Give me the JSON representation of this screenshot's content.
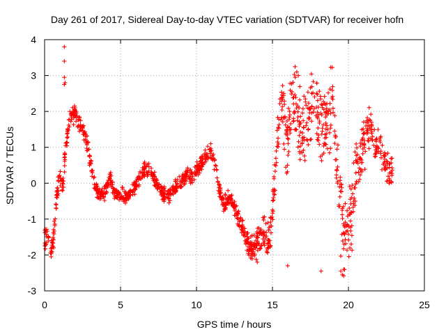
{
  "chart_data": {
    "type": "scatter",
    "title": "Day 261 of 2017, Sidereal Day-to-day VTEC variation (SDTVAR) for receiver hofn",
    "xlabel": "GPS time / hours",
    "ylabel": "SDTVAR / TECUs",
    "xlim": [
      0,
      25
    ],
    "ylim": [
      -3,
      4
    ],
    "xticks": [
      "0",
      "5",
      "10",
      "15",
      "20",
      "25"
    ],
    "yticks": [
      "-3",
      "-2",
      "-1",
      "0",
      "1",
      "2",
      "3",
      "4"
    ],
    "grid": true,
    "marker": "+",
    "color": "#ff0000",
    "series": [
      {
        "name": "SDTVAR",
        "anchors_x": [
          0.0,
          0.2,
          0.4,
          0.6,
          0.8,
          1.0,
          1.2,
          1.4,
          1.6,
          1.8,
          2.0,
          2.2,
          2.4,
          2.6,
          2.8,
          3.0,
          3.3,
          3.6,
          4.0,
          4.3,
          4.6,
          5.0,
          5.4,
          5.8,
          6.2,
          6.6,
          7.0,
          7.4,
          7.8,
          8.2,
          8.6,
          9.0,
          9.4,
          9.8,
          10.2,
          10.6,
          10.9,
          11.2,
          11.5,
          11.8,
          12.2,
          12.6,
          13.0,
          13.3,
          13.6,
          14.0,
          14.4,
          14.8,
          15.0,
          15.3,
          15.6,
          16.0,
          16.3,
          16.6,
          17.0,
          17.4,
          17.8,
          18.2,
          18.6,
          19.0,
          19.3,
          19.6,
          19.9,
          20.2,
          20.5,
          20.8,
          21.1,
          21.4,
          21.7,
          22.0,
          22.3,
          22.6,
          22.9
        ],
        "anchors_y": [
          -1.6,
          -1.4,
          -1.9,
          -1.5,
          -0.3,
          0.2,
          -0.2,
          1.2,
          1.6,
          1.9,
          2.0,
          1.6,
          1.8,
          1.4,
          1.2,
          0.6,
          0.0,
          -0.4,
          -0.2,
          0.2,
          -0.3,
          -0.3,
          -0.4,
          -0.2,
          0.1,
          0.4,
          0.3,
          0.0,
          -0.3,
          -0.4,
          -0.1,
          0.0,
          0.3,
          0.2,
          0.5,
          0.7,
          0.9,
          0.6,
          -0.2,
          -0.6,
          -0.4,
          -0.8,
          -1.2,
          -1.6,
          -1.9,
          -1.6,
          -1.4,
          -1.8,
          -0.8,
          1.2,
          2.2,
          1.0,
          2.6,
          1.8,
          1.2,
          2.0,
          2.2,
          1.6,
          1.8,
          2.4,
          0.6,
          -1.2,
          -1.6,
          -1.0,
          0.2,
          0.8,
          1.2,
          1.8,
          1.0,
          1.2,
          0.6,
          0.4,
          0.2
        ],
        "spread_x": [
          0,
          2,
          4,
          6,
          8,
          10,
          12,
          13,
          14,
          15,
          16,
          17,
          18,
          19,
          20,
          21,
          22,
          23
        ],
        "spread_y": [
          0.25,
          0.2,
          0.15,
          0.15,
          0.15,
          0.15,
          0.15,
          0.2,
          0.3,
          0.45,
          0.9,
          0.9,
          0.8,
          0.9,
          0.8,
          0.5,
          0.4,
          0.3
        ],
        "outliers": [
          {
            "x": 1.3,
            "y": 3.8
          },
          {
            "x": 1.3,
            "y": 3.4
          },
          {
            "x": 1.3,
            "y": 2.95
          },
          {
            "x": 1.3,
            "y": 2.75
          },
          {
            "x": 1.35,
            "y": 2.8
          },
          {
            "x": 16.6,
            "y": 3.1
          },
          {
            "x": 16.5,
            "y": 2.95
          },
          {
            "x": 16.7,
            "y": 3.0
          },
          {
            "x": 19.5,
            "y": -2.45
          },
          {
            "x": 19.6,
            "y": -2.55
          },
          {
            "x": 19.7,
            "y": -2.4
          },
          {
            "x": 18.2,
            "y": -2.45
          },
          {
            "x": 16.0,
            "y": -2.3
          },
          {
            "x": 14.0,
            "y": -2.2
          }
        ]
      }
    ]
  }
}
